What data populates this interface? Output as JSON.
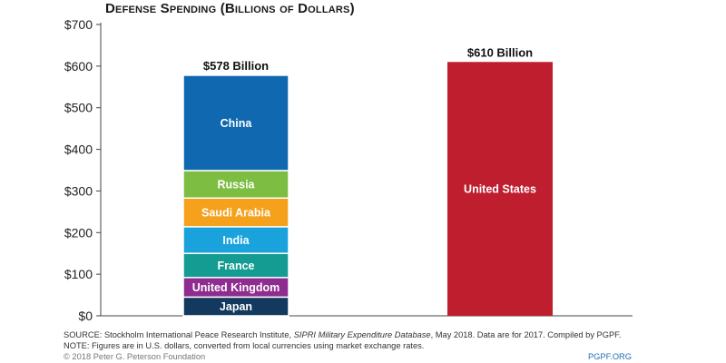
{
  "chart_data": {
    "type": "bar",
    "stacked": true,
    "title": "Defense Spending (Billions of Dollars)",
    "xlabel": "",
    "ylabel": "",
    "ylim": [
      0,
      700
    ],
    "yticks": [
      0,
      100,
      200,
      300,
      400,
      500,
      600,
      700
    ],
    "ytick_labels": [
      "$0",
      "$100",
      "$200",
      "$300",
      "$400",
      "$500",
      "$600",
      "$700"
    ],
    "grid": false,
    "legend": "none",
    "bars": [
      {
        "total_label": "$578 Billion",
        "total": 578,
        "segments": [
          {
            "name": "Japan",
            "value": 45,
            "color": "#133a5e"
          },
          {
            "name": "United Kingdom",
            "value": 47,
            "color": "#8e2c8f"
          },
          {
            "name": "France",
            "value": 58,
            "color": "#159c92"
          },
          {
            "name": "India",
            "value": 64,
            "color": "#1aa2dd"
          },
          {
            "name": "Saudi Arabia",
            "value": 69,
            "color": "#f5a11c"
          },
          {
            "name": "Russia",
            "value": 66,
            "color": "#7dbd42"
          },
          {
            "name": "China",
            "value": 229,
            "color": "#0f68b0"
          }
        ]
      },
      {
        "total_label": "$610 Billion",
        "total": 610,
        "segments": [
          {
            "name": "United States",
            "value": 610,
            "color": "#bf1e2e"
          }
        ]
      }
    ]
  },
  "footer": {
    "source_prefix": "SOURCE: Stockholm International Peace Research Institute, ",
    "source_italic": "SIPRI Military Expenditure Database",
    "source_suffix": ", May 2018. Data are for 2017. Compiled by PGPF.",
    "note": "NOTE: Figures are in U.S. dollars, converted from local currencies using market exchange rates.",
    "copyright": "© 2018 Peter G. Peterson Foundation",
    "site": "PGPF.ORG"
  }
}
